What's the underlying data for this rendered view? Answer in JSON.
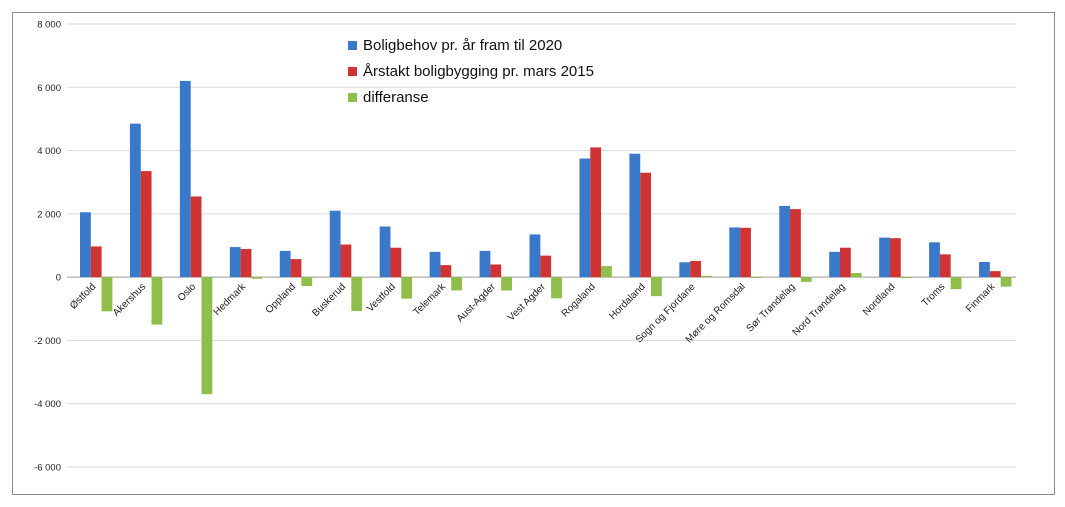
{
  "chart_data": {
    "type": "bar",
    "title": "",
    "xlabel": "",
    "ylabel": "",
    "ylim": [
      -6000,
      8000
    ],
    "yticks": [
      8000,
      6000,
      4000,
      2000,
      0,
      -2000,
      -4000,
      -6000
    ],
    "ytick_labels": [
      "8 000",
      "6 000",
      "4 000",
      "2 000",
      "0",
      "-2 000",
      "-4 000",
      "-6 000"
    ],
    "grid": true,
    "legend_position": "top-center",
    "categories": [
      "Østfold",
      "Akershus",
      "Oslo",
      "Hedmark",
      "Oppland",
      "Buskerud",
      "Vestfold",
      "Telemark",
      "Aust-Agder",
      "Vest Agder",
      "Rogaland",
      "Hordaland",
      "Sogn og Fjordane",
      "Møre og Romsdal",
      "Sør Trøndelag",
      "Nord Trøndelag",
      "Nordland",
      "Troms",
      "Finmark"
    ],
    "series": [
      {
        "name": "Boligbehov pr. år fram til 2020",
        "color": "#3a78c9",
        "values": [
          2050,
          4850,
          6200,
          950,
          830,
          2100,
          1600,
          800,
          830,
          1350,
          3750,
          3900,
          470,
          1570,
          2250,
          800,
          1250,
          1100,
          480
        ]
      },
      {
        "name": "Årstakt boligbygging pr. mars 2015",
        "color": "#cf3333",
        "values": [
          970,
          3350,
          2550,
          890,
          570,
          1030,
          930,
          380,
          400,
          680,
          4100,
          3300,
          510,
          1560,
          2150,
          930,
          1230,
          720,
          190
        ]
      },
      {
        "name": "differanse",
        "color": "#8fbe4a",
        "values": [
          -1080,
          -1500,
          -3700,
          -50,
          -280,
          -1070,
          -680,
          -420,
          -420,
          -670,
          350,
          -600,
          40,
          -20,
          -150,
          130,
          -30,
          -380,
          -300
        ]
      }
    ]
  }
}
